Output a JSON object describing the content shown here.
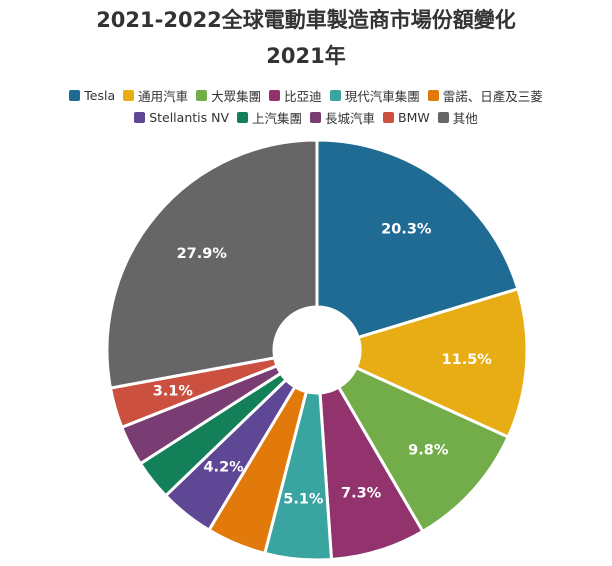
{
  "chart_data": {
    "type": "pie",
    "title": "2021-2022全球電動車製造商市場份額變化",
    "subtitle": "2021年",
    "legend_position": "top",
    "categories": [
      "Tesla",
      "通用汽車",
      "大眾集團",
      "比亞迪",
      "現代汽車集團",
      "雷諾、日產及三菱",
      "Stellantis NV",
      "上汽集團",
      "長城汽車",
      "BMW",
      "其他"
    ],
    "values": [
      20.3,
      11.5,
      9.8,
      7.3,
      5.1,
      4.6,
      4.2,
      3.1,
      3.1,
      3.1,
      27.9
    ],
    "labels": [
      "20.3%",
      "11.5%",
      "9.8%",
      "7.3%",
      "5.1%",
      "",
      "4.2%",
      "",
      "",
      "3.1%",
      "27.9%"
    ],
    "colors": [
      "#1f6b94",
      "#e8ad14",
      "#72ad4a",
      "#93336d",
      "#3aa5a0",
      "#e2790b",
      "#5e4795",
      "#13805a",
      "#7a3d73",
      "#cc5040",
      "#666666"
    ]
  }
}
